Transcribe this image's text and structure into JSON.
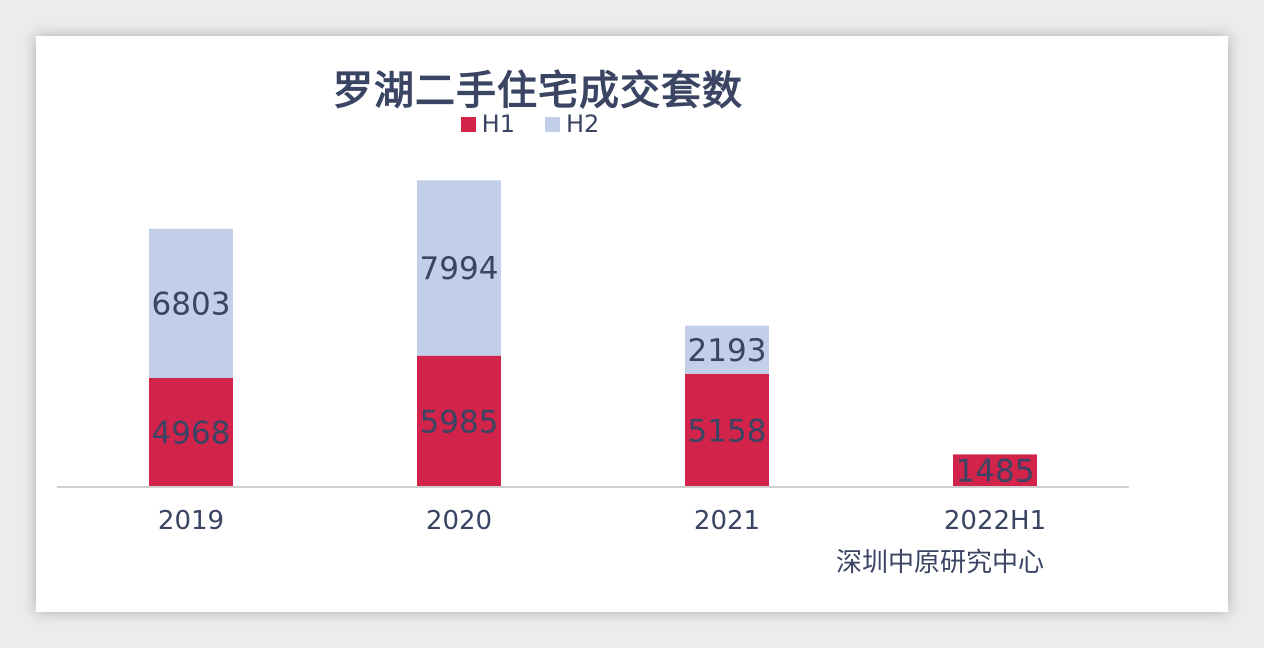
{
  "chart_data": {
    "type": "bar",
    "stacked": true,
    "title": "罗湖二手住宅成交套数",
    "categories": [
      "2019",
      "2020",
      "2021",
      "2022H1"
    ],
    "series": [
      {
        "name": "H1",
        "color": "#d2234a",
        "values": [
          4968,
          5985,
          5158,
          1485
        ]
      },
      {
        "name": "H2",
        "color": "#c2cfe8",
        "values": [
          6803,
          7994,
          2193,
          null
        ]
      }
    ],
    "ylim": [
      0,
      14000
    ],
    "grid": false,
    "legend_position": "top-center",
    "source": "深圳中原研究中心"
  }
}
